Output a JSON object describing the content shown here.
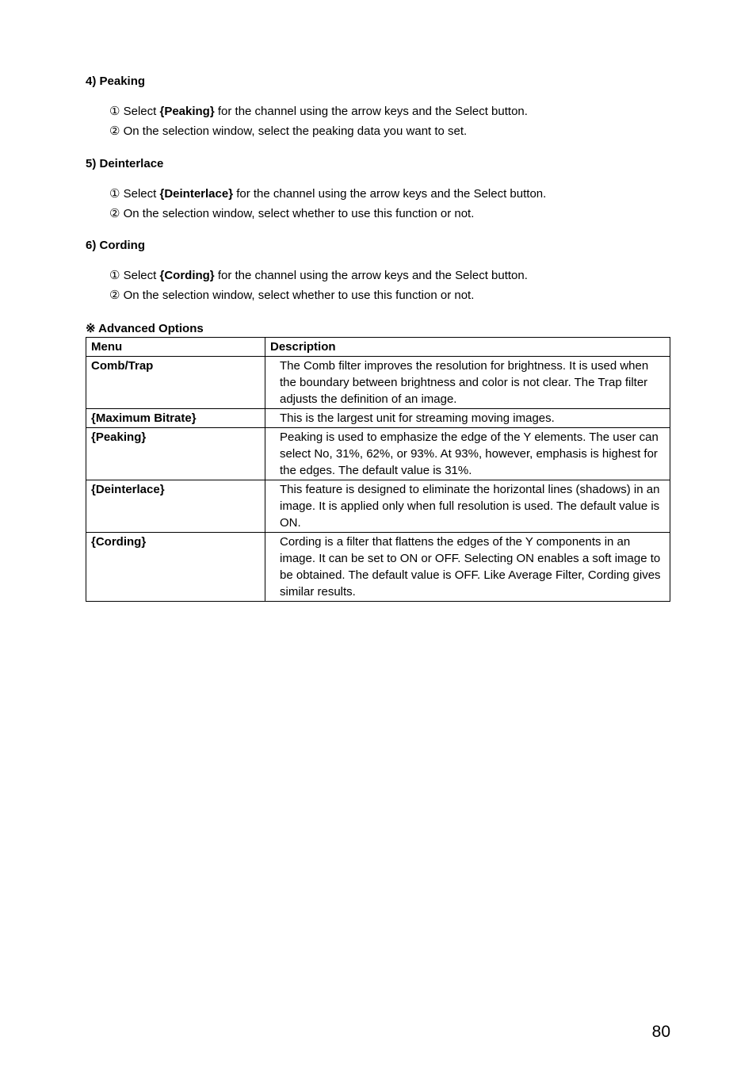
{
  "sections": {
    "peaking": {
      "heading": "4) Peaking",
      "items": [
        {
          "num": "①",
          "pre": "Select ",
          "bold": "{Peaking}",
          "post": " for the channel using the arrow keys and the Select button."
        },
        {
          "num": "②",
          "pre": "On the selection window, select the peaking data you want to set.",
          "bold": "",
          "post": ""
        }
      ]
    },
    "deinterlace": {
      "heading": "5) Deinterlace",
      "items": [
        {
          "num": "①",
          "pre": "Select ",
          "bold": "{Deinterlace}",
          "post": " for the channel using the arrow keys and the Select button."
        },
        {
          "num": "②",
          "pre": "On the selection window, select whether to use this function or not.",
          "bold": "",
          "post": ""
        }
      ]
    },
    "cording": {
      "heading": "6) Cording",
      "items": [
        {
          "num": "①",
          "pre": "Select ",
          "bold": "{Cording}",
          "post": " for the channel using the arrow keys and the Select button."
        },
        {
          "num": "②",
          "pre": "On the selection window, select whether to use this function or not.",
          "bold": "",
          "post": ""
        }
      ]
    }
  },
  "table": {
    "title": "※ Advanced Options",
    "header": {
      "menu": "Menu",
      "desc": "Description"
    },
    "rows": [
      {
        "menu": "Comb/Trap",
        "desc": "The Comb filter improves the resolution for brightness. It is used when the boundary between brightness and color is not clear. The Trap filter adjusts the definition of an image."
      },
      {
        "menu": "{Maximum Bitrate}",
        "desc": "This is the largest unit for streaming moving images."
      },
      {
        "menu": "{Peaking}",
        "desc": "Peaking is used to emphasize the edge of the Y elements. The user can select No, 31%, 62%, or 93%. At 93%, however, emphasis is highest for the edges. The default value is 31%."
      },
      {
        "menu": "{Deinterlace}",
        "desc": "This feature is designed to eliminate the horizontal lines (shadows) in an image. It is applied only when full resolution is used. The default value is ON."
      },
      {
        "menu": "{Cording}",
        "desc": "Cording is a filter that flattens the edges of the Y components in an image. It can be set to ON or OFF. Selecting ON enables a soft image to be obtained. The default value is OFF. Like Average Filter, Cording gives similar results."
      }
    ]
  },
  "pageNumber": "80",
  "style": {
    "text_color": "#000000",
    "background": "#ffffff",
    "border_color": "#000000",
    "body_fontsize": 15,
    "pagenum_fontsize": 21
  }
}
